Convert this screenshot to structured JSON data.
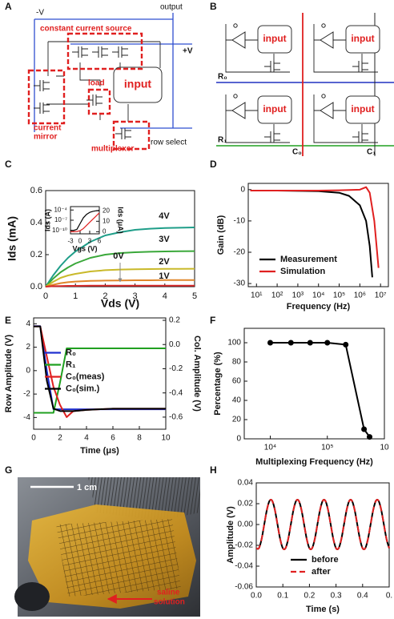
{
  "panel_labels": [
    "A",
    "B",
    "C",
    "D",
    "E",
    "F",
    "G",
    "H"
  ],
  "circuit_a": {
    "neg_v": "-V",
    "output": "output",
    "pos_v": "+V",
    "constant_current_source": "constant current source",
    "input": "input",
    "load": "load",
    "current_mirror": [
      "current",
      "mirror"
    ],
    "multiplexer": "multiplexer",
    "row_select": "row select"
  },
  "array_b": {
    "inputs": [
      "input",
      "input",
      "input",
      "input"
    ],
    "rows": [
      "R₀",
      "R₁"
    ],
    "columns": [
      "C₀",
      "C₁"
    ]
  },
  "photo_g": {
    "scale_bar": "1 cm",
    "annotation": [
      "saline",
      "solution"
    ]
  },
  "chart_data": [
    {
      "type": "line",
      "x_label": "Vds (V)",
      "y_label": "Ids (mA)",
      "x": [
        0,
        0.25,
        0.5,
        0.75,
        1,
        1.5,
        2,
        2.5,
        3,
        3.5,
        4,
        4.5,
        5
      ],
      "xlim": [
        0,
        5
      ],
      "xticks": [
        0,
        1,
        2,
        3,
        4,
        5
      ],
      "ylim": [
        0,
        0.6
      ],
      "yticks": [
        {
          "value": 0,
          "label": "0.0"
        },
        0.2,
        0.4,
        0.6
      ],
      "series": [
        {
          "name": "4V",
          "color": "#1f9e89",
          "values": [
            0,
            0.07,
            0.13,
            0.18,
            0.22,
            0.28,
            0.32,
            0.34,
            0.355,
            0.362,
            0.366,
            0.368,
            0.37
          ]
        },
        {
          "name": "3V",
          "color": "#3aa83a",
          "values": [
            0,
            0.05,
            0.09,
            0.12,
            0.145,
            0.18,
            0.2,
            0.21,
            0.215,
            0.218,
            0.22,
            0.221,
            0.222
          ]
        },
        {
          "name": "2V",
          "color": "#c9b92a",
          "values": [
            0,
            0.03,
            0.055,
            0.07,
            0.08,
            0.095,
            0.103,
            0.107,
            0.109,
            0.11,
            0.111,
            0.111,
            0.112
          ]
        },
        {
          "name": "1V",
          "color": "#e0862a",
          "values": [
            0,
            0.012,
            0.022,
            0.028,
            0.032,
            0.036,
            0.038,
            0.039,
            0.04,
            0.04,
            0.041,
            0.041,
            0.041
          ]
        },
        {
          "name": "0V",
          "color": "#d62728",
          "values": [
            0,
            0.003,
            0.004,
            0.005,
            0.005,
            0.006,
            0.006,
            0.006,
            0.006,
            0.006,
            0.006,
            0.006,
            0.006
          ]
        }
      ]
    },
    {
      "type": "line",
      "x_label": "Vgs (V)",
      "y_label": "Ids (A)",
      "y2_label": "Ids (μA)",
      "ylog": true,
      "x": [
        -3,
        -2,
        -1,
        0,
        1,
        2,
        3,
        4,
        5,
        6
      ],
      "xlim": [
        -3,
        6
      ],
      "xticks": [
        -3,
        0,
        3,
        6
      ],
      "ylim": [
        1e-11,
        0.001
      ],
      "yticks": [
        {
          "value": 0.0001,
          "label": "10⁻⁴"
        },
        {
          "value": 1e-07,
          "label": "10⁻⁷"
        },
        {
          "value": 1e-10,
          "label": "10⁻¹⁰"
        }
      ],
      "y2lim": [
        -2,
        24
      ],
      "y2ticks": [
        0,
        10,
        20
      ],
      "series": [
        {
          "color": "#000000",
          "values": [
            1e-10,
            1e-10,
            2e-10,
            1e-08,
            5e-07,
            5e-06,
            2e-05,
            4e-05,
            6e-05,
            8e-05
          ]
        },
        {
          "color": "#e02020",
          "axis": "y2",
          "values": [
            0,
            0,
            0.2,
            1,
            3,
            6,
            9,
            12,
            15,
            18
          ]
        }
      ]
    },
    {
      "type": "line",
      "x_label": "Frequency (Hz)",
      "y_label": "Gain (dB)",
      "xlog": true,
      "legend": "lower left",
      "xlim": [
        4,
        24000000
      ],
      "xticks": [
        {
          "value": 10,
          "label": "10¹"
        },
        {
          "value": 100,
          "label": "10²"
        },
        {
          "value": 1000,
          "label": "10³"
        },
        {
          "value": 10000,
          "label": "10⁴"
        },
        {
          "value": 100000,
          "label": "10⁵"
        },
        {
          "value": 1000000,
          "label": "10⁶"
        },
        {
          "value": 10000000,
          "label": "10⁷"
        }
      ],
      "ylim": [
        -31,
        2
      ],
      "yticks": [
        0,
        -10,
        -20,
        -30
      ],
      "series": [
        {
          "name": "Measurement",
          "color": "#000000",
          "x": [
            5,
            10,
            100,
            1000,
            10000,
            100000,
            300000,
            1000000,
            2000000,
            3000000,
            4000000
          ],
          "values": [
            -0.3,
            -0.3,
            -0.3,
            -0.4,
            -0.5,
            -1,
            -2,
            -5,
            -10,
            -18,
            -28
          ]
        },
        {
          "name": "Simulation",
          "color": "#e02020",
          "x": [
            5,
            10,
            100,
            1000,
            10000,
            100000,
            1000000,
            2000000,
            3000000,
            5000000,
            8000000
          ],
          "values": [
            -0.3,
            -0.3,
            -0.3,
            -0.3,
            -0.3,
            -0.2,
            0,
            0.8,
            -1,
            -10,
            -25
          ]
        }
      ]
    },
    {
      "type": "line",
      "x_label": "Time (μs)",
      "y_label": "Row Amplitude (V)",
      "y2_label": "Col. Amplitude (V)",
      "legend": "center left",
      "x": [
        0,
        0.5,
        1,
        1.5,
        2,
        2.5,
        3,
        4,
        6,
        8,
        10
      ],
      "xlim": [
        0,
        10
      ],
      "xticks": [
        0,
        2,
        4,
        6,
        8,
        10
      ],
      "ylim": [
        -5,
        4.5
      ],
      "yticks": [
        -4,
        -2,
        0,
        2,
        4
      ],
      "y2lim": [
        -0.7,
        0.22
      ],
      "y2ticks": [
        0.2,
        {
          "value": 0,
          "label": "0.0"
        },
        -0.2,
        -0.4,
        -0.6
      ],
      "series": [
        {
          "name": "R₀",
          "color": "#2030d0",
          "values": [
            3.8,
            3.8,
            0,
            -3.3,
            -3.3,
            -3.3,
            -3.3,
            -3.3,
            -3.3,
            -3.3,
            -3.3
          ]
        },
        {
          "name": "R₁",
          "color": "#20a020",
          "values": [
            -3.6,
            -3.6,
            -3.6,
            -3.6,
            -1,
            1.9,
            1.9,
            1.9,
            1.9,
            1.9,
            1.9
          ]
        },
        {
          "name": "C₀(meas)",
          "color": "#e02020",
          "axis": "y2",
          "values": [
            0.15,
            0.15,
            -0.1,
            -0.35,
            -0.5,
            -0.6,
            -0.55,
            -0.54,
            -0.53,
            -0.53,
            -0.53
          ]
        },
        {
          "name": "C₀(sim.)",
          "color": "#000000",
          "axis": "y2",
          "values": [
            0.15,
            0.15,
            -0.3,
            -0.53,
            -0.55,
            -0.55,
            -0.55,
            -0.54,
            -0.53,
            -0.53,
            -0.53
          ]
        }
      ]
    },
    {
      "type": "line",
      "x_label": "Multiplexing Frequency (Hz)",
      "y_label": "Percentage (%)",
      "xlog": true,
      "markers": true,
      "xlim": [
        3500,
        1000000
      ],
      "xticks": [
        {
          "value": 10000,
          "label": "10⁴"
        },
        {
          "value": 100000,
          "label": "10⁵"
        },
        {
          "value": 1000000,
          "label": "10"
        }
      ],
      "ylim": [
        0,
        115
      ],
      "yticks": [
        0,
        20,
        40,
        60,
        80,
        100
      ],
      "series": [
        {
          "color": "#000000",
          "x": [
            10000,
            23000,
            50000,
            100000,
            210000,
            440000,
            550000
          ],
          "values": [
            100,
            100,
            100,
            100,
            98,
            10,
            2
          ]
        }
      ]
    },
    {
      "type": "line",
      "x_label": "Time (s)",
      "y_label": "Amplitude (V)",
      "smooth": true,
      "legend": "lower center",
      "x": [
        0,
        0.01,
        0.02,
        0.03,
        0.04,
        0.05,
        0.06,
        0.07,
        0.08,
        0.09,
        0.1,
        0.11,
        0.12,
        0.13,
        0.14,
        0.15,
        0.16,
        0.17,
        0.18,
        0.19,
        0.2,
        0.21,
        0.22,
        0.23,
        0.24,
        0.25,
        0.26,
        0.27,
        0.28,
        0.29,
        0.3,
        0.31,
        0.32,
        0.33,
        0.34,
        0.35,
        0.36,
        0.37,
        0.38,
        0.39,
        0.4,
        0.41,
        0.42,
        0.43,
        0.44,
        0.45,
        0.46,
        0.47,
        0.48,
        0.49,
        0.5
      ],
      "xlim": [
        0,
        0.5
      ],
      "xticks": [
        {
          "value": 0,
          "label": "0.0"
        },
        0.1,
        0.2,
        0.3,
        0.4,
        {
          "value": 0.5,
          "label": "0."
        }
      ],
      "ylim": [
        -0.06,
        0.04
      ],
      "yticks": [
        0.04,
        0.02,
        {
          "value": 0,
          "label": "0.00"
        },
        -0.02,
        -0.04,
        -0.06
      ],
      "series": [
        {
          "name": "before",
          "color": "#000000",
          "values": [
            -0.0228,
            -0.0228,
            -0.0141,
            0,
            0.0141,
            0.0228,
            0.0228,
            0.0141,
            0,
            -0.0141,
            -0.0228,
            -0.0228,
            -0.0141,
            0,
            0.0141,
            0.0228,
            0.0228,
            0.0141,
            0,
            -0.0141,
            -0.0228,
            -0.0228,
            -0.0141,
            0,
            0.0141,
            0.0228,
            0.0228,
            0.0141,
            0,
            -0.0141,
            -0.0228,
            -0.0228,
            -0.0141,
            0,
            0.0141,
            0.0228,
            0.0228,
            0.0141,
            0,
            -0.0141,
            -0.0228,
            -0.0228,
            -0.0141,
            0,
            0.0141,
            0.0228,
            0.0228,
            0.0141,
            0,
            -0.0141,
            -0.0228
          ]
        },
        {
          "name": "after",
          "color": "#e02020",
          "dash": true,
          "values": [
            -0.0228,
            -0.0228,
            -0.0141,
            0,
            0.0141,
            0.0228,
            0.0228,
            0.0141,
            0,
            -0.0141,
            -0.0228,
            -0.0228,
            -0.0141,
            0,
            0.0141,
            0.0228,
            0.0228,
            0.0141,
            0,
            -0.0141,
            -0.0228,
            -0.0228,
            -0.0141,
            0,
            0.0141,
            0.0228,
            0.0228,
            0.0141,
            0,
            -0.0141,
            -0.0228,
            -0.0228,
            -0.0141,
            0,
            0.0141,
            0.0228,
            0.0228,
            0.0141,
            0,
            -0.0141,
            -0.0228,
            -0.0228,
            -0.0141,
            0,
            0.0141,
            0.0228,
            0.0228,
            0.0141,
            0,
            -0.0141,
            -0.0228
          ]
        }
      ]
    }
  ]
}
